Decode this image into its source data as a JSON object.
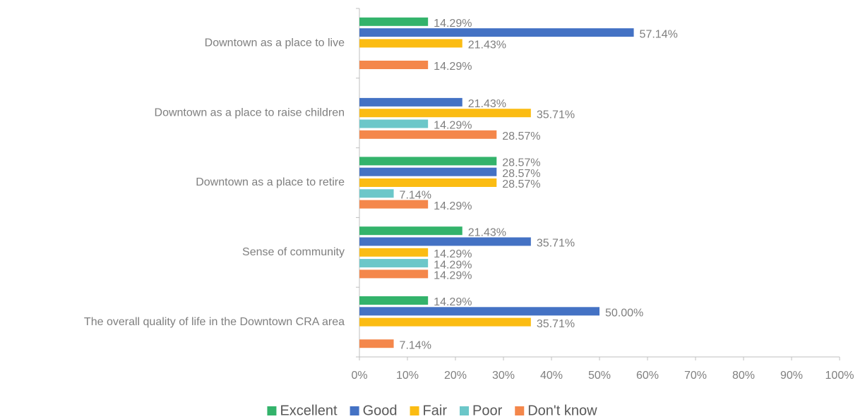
{
  "chart_data": {
    "type": "bar",
    "orientation": "horizontal",
    "categories": [
      "Downtown as a place to live",
      "Downtown as a place to raise children",
      "Downtown as a place to retire",
      "Sense of community",
      "The overall quality of life in the Downtown CRA area"
    ],
    "series": [
      {
        "name": "Excellent",
        "color": "#33b36b",
        "values": [
          14.29,
          null,
          28.57,
          21.43,
          14.29
        ],
        "value_labels": [
          "14.29%",
          null,
          "28.57%",
          "21.43%",
          "14.29%"
        ]
      },
      {
        "name": "Good",
        "color": "#4472c4",
        "values": [
          57.14,
          21.43,
          28.57,
          35.71,
          50.0
        ],
        "value_labels": [
          "57.14%",
          "21.43%",
          "28.57%",
          "35.71%",
          "50.00%"
        ]
      },
      {
        "name": "Fair",
        "color": "#fbbc13",
        "values": [
          21.43,
          35.71,
          28.57,
          14.29,
          35.71
        ],
        "value_labels": [
          "21.43%",
          "35.71%",
          "28.57%",
          "14.29%",
          "35.71%"
        ]
      },
      {
        "name": "Poor",
        "color": "#6cc7c9",
        "values": [
          null,
          14.29,
          7.14,
          14.29,
          null
        ],
        "value_labels": [
          null,
          "14.29%",
          "7.14%",
          "14.29%",
          null
        ]
      },
      {
        "name": "Don't know",
        "color": "#f4874b",
        "values": [
          14.29,
          28.57,
          14.29,
          14.29,
          7.14
        ],
        "value_labels": [
          "14.29%",
          "28.57%",
          "14.29%",
          "14.29%",
          "7.14%"
        ]
      }
    ],
    "xlim": [
      0,
      100
    ],
    "xticks": [
      {
        "value": 0,
        "label": "0%"
      },
      {
        "value": 10,
        "label": "10%"
      },
      {
        "value": 20,
        "label": "20%"
      },
      {
        "value": 30,
        "label": "30%"
      },
      {
        "value": 40,
        "label": "40%"
      },
      {
        "value": 50,
        "label": "50%"
      },
      {
        "value": 60,
        "label": "60%"
      },
      {
        "value": 70,
        "label": "70%"
      },
      {
        "value": 80,
        "label": "80%"
      },
      {
        "value": 90,
        "label": "90%"
      },
      {
        "value": 100,
        "label": "100%"
      }
    ],
    "legend": "bottom"
  }
}
